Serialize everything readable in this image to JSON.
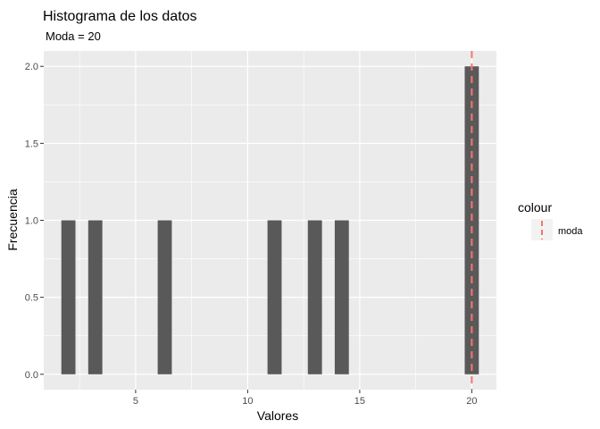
{
  "chart_data": {
    "type": "bar",
    "title": "Histograma de los datos",
    "subtitle": "Moda =  20",
    "xlabel": "Valores",
    "ylabel": "Frecuencia",
    "xlim": [
      0.9,
      21.1
    ],
    "ylim": [
      -0.1,
      2.1
    ],
    "x_ticks": [
      5,
      10,
      15,
      20
    ],
    "y_ticks": [
      0.0,
      0.5,
      1.0,
      1.5,
      2.0
    ],
    "x_tick_labels": [
      "5",
      "10",
      "15",
      "20"
    ],
    "y_tick_labels": [
      "0.0",
      "0.5",
      "1.0",
      "1.5",
      "2.0"
    ],
    "bin_width": 0.63,
    "bars": [
      {
        "x": 2.0,
        "count": 1
      },
      {
        "x": 3.2,
        "count": 1
      },
      {
        "x": 6.3,
        "count": 1
      },
      {
        "x": 11.2,
        "count": 1
      },
      {
        "x": 13.0,
        "count": 1
      },
      {
        "x": 14.2,
        "count": 1
      },
      {
        "x": 20.0,
        "count": 2
      }
    ],
    "bar_color": "#595959",
    "panel_background": "#ebebeb",
    "grid": true,
    "vline": {
      "x": 20,
      "color": "#f8766d",
      "style": "dashed",
      "legend_label": "moda"
    },
    "legend": {
      "title": "colour",
      "placement": "right",
      "entries": [
        {
          "label": "moda",
          "color": "#f8766d"
        }
      ]
    }
  }
}
